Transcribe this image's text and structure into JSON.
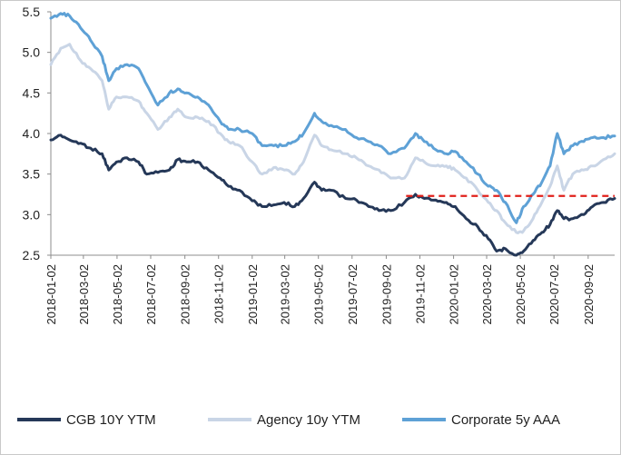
{
  "chart_data": {
    "type": "line",
    "title": "",
    "xlabel": "",
    "ylabel": "",
    "ylim": [
      2.5,
      5.5
    ],
    "yticks": [
      "2.5",
      "3.0",
      "3.5",
      "4.0",
      "4.5",
      "5.0",
      "5.5"
    ],
    "xlim": [
      "2018-01-02",
      "2020-10-20"
    ],
    "xticks": [
      "2018-01-02",
      "2018-03-02",
      "2018-05-02",
      "2018-07-02",
      "2018-09-02",
      "2018-11-02",
      "2019-01-02",
      "2019-03-02",
      "2019-05-02",
      "2019-07-02",
      "2019-09-02",
      "2019-11-02",
      "2020-01-02",
      "2020-03-02",
      "2020-05-02",
      "2020-07-02",
      "2020-09-02"
    ],
    "grid": false,
    "legend_position": "bottom",
    "reference_line": {
      "y": 3.23,
      "x_start": "2019-10-08",
      "x_end": "2020-10-20",
      "style": "dashed",
      "color": "#e0201b"
    },
    "series": [
      {
        "name": "CGB 10Y YTM",
        "color": "#253858",
        "points": [
          [
            "2018-01-02",
            3.92
          ],
          [
            "2018-01-20",
            3.98
          ],
          [
            "2018-02-05",
            3.92
          ],
          [
            "2018-02-25",
            3.88
          ],
          [
            "2018-03-15",
            3.82
          ],
          [
            "2018-04-05",
            3.75
          ],
          [
            "2018-04-17",
            3.55
          ],
          [
            "2018-05-01",
            3.65
          ],
          [
            "2018-05-20",
            3.7
          ],
          [
            "2018-06-10",
            3.65
          ],
          [
            "2018-06-25",
            3.5
          ],
          [
            "2018-07-15",
            3.52
          ],
          [
            "2018-08-05",
            3.55
          ],
          [
            "2018-08-20",
            3.68
          ],
          [
            "2018-09-05",
            3.65
          ],
          [
            "2018-09-25",
            3.65
          ],
          [
            "2018-10-15",
            3.55
          ],
          [
            "2018-11-05",
            3.45
          ],
          [
            "2018-11-20",
            3.35
          ],
          [
            "2018-12-10",
            3.3
          ],
          [
            "2019-01-02",
            3.17
          ],
          [
            "2019-01-20",
            3.1
          ],
          [
            "2019-02-10",
            3.12
          ],
          [
            "2019-03-01",
            3.15
          ],
          [
            "2019-03-20",
            3.1
          ],
          [
            "2019-04-05",
            3.2
          ],
          [
            "2019-04-25",
            3.4
          ],
          [
            "2019-05-08",
            3.3
          ],
          [
            "2019-05-25",
            3.3
          ],
          [
            "2019-06-20",
            3.2
          ],
          [
            "2019-07-10",
            3.18
          ],
          [
            "2019-08-01",
            3.1
          ],
          [
            "2019-08-20",
            3.05
          ],
          [
            "2019-09-10",
            3.05
          ],
          [
            "2019-10-05",
            3.15
          ],
          [
            "2019-10-25",
            3.25
          ],
          [
            "2019-11-10",
            3.2
          ],
          [
            "2019-12-01",
            3.18
          ],
          [
            "2019-12-20",
            3.15
          ],
          [
            "2020-01-05",
            3.1
          ],
          [
            "2020-01-25",
            2.95
          ],
          [
            "2020-02-15",
            2.85
          ],
          [
            "2020-03-05",
            2.7
          ],
          [
            "2020-03-20",
            2.55
          ],
          [
            "2020-04-05",
            2.58
          ],
          [
            "2020-04-25",
            2.5
          ],
          [
            "2020-05-08",
            2.55
          ],
          [
            "2020-05-25",
            2.68
          ],
          [
            "2020-06-10",
            2.78
          ],
          [
            "2020-06-25",
            2.88
          ],
          [
            "2020-07-08",
            3.05
          ],
          [
            "2020-07-20",
            2.95
          ],
          [
            "2020-08-05",
            2.95
          ],
          [
            "2020-08-25",
            3.0
          ],
          [
            "2020-09-10",
            3.1
          ],
          [
            "2020-09-30",
            3.15
          ],
          [
            "2020-10-20",
            3.2
          ]
        ]
      },
      {
        "name": "Agency 10y YTM",
        "color": "#c9d5e6",
        "points": [
          [
            "2018-01-02",
            4.85
          ],
          [
            "2018-01-20",
            5.05
          ],
          [
            "2018-02-05",
            5.1
          ],
          [
            "2018-02-25",
            4.9
          ],
          [
            "2018-03-15",
            4.8
          ],
          [
            "2018-04-05",
            4.65
          ],
          [
            "2018-04-17",
            4.3
          ],
          [
            "2018-05-01",
            4.45
          ],
          [
            "2018-05-20",
            4.45
          ],
          [
            "2018-06-10",
            4.4
          ],
          [
            "2018-06-25",
            4.25
          ],
          [
            "2018-07-15",
            4.05
          ],
          [
            "2018-08-05",
            4.2
          ],
          [
            "2018-08-20",
            4.3
          ],
          [
            "2018-09-05",
            4.2
          ],
          [
            "2018-09-25",
            4.2
          ],
          [
            "2018-10-15",
            4.15
          ],
          [
            "2018-11-05",
            4.0
          ],
          [
            "2018-11-20",
            3.9
          ],
          [
            "2018-12-10",
            3.85
          ],
          [
            "2019-01-02",
            3.65
          ],
          [
            "2019-01-20",
            3.5
          ],
          [
            "2019-02-10",
            3.58
          ],
          [
            "2019-03-01",
            3.55
          ],
          [
            "2019-03-20",
            3.5
          ],
          [
            "2019-04-05",
            3.65
          ],
          [
            "2019-04-25",
            3.98
          ],
          [
            "2019-05-08",
            3.85
          ],
          [
            "2019-05-25",
            3.8
          ],
          [
            "2019-06-20",
            3.75
          ],
          [
            "2019-07-10",
            3.7
          ],
          [
            "2019-08-01",
            3.6
          ],
          [
            "2019-08-20",
            3.55
          ],
          [
            "2019-09-10",
            3.45
          ],
          [
            "2019-10-05",
            3.45
          ],
          [
            "2019-10-25",
            3.7
          ],
          [
            "2019-11-10",
            3.65
          ],
          [
            "2019-12-01",
            3.6
          ],
          [
            "2019-12-20",
            3.6
          ],
          [
            "2020-01-05",
            3.55
          ],
          [
            "2020-01-25",
            3.45
          ],
          [
            "2020-02-15",
            3.3
          ],
          [
            "2020-03-05",
            3.15
          ],
          [
            "2020-03-20",
            3.05
          ],
          [
            "2020-04-05",
            2.9
          ],
          [
            "2020-04-25",
            2.78
          ],
          [
            "2020-05-08",
            2.8
          ],
          [
            "2020-05-25",
            2.95
          ],
          [
            "2020-06-10",
            3.15
          ],
          [
            "2020-06-25",
            3.35
          ],
          [
            "2020-07-08",
            3.6
          ],
          [
            "2020-07-20",
            3.3
          ],
          [
            "2020-08-05",
            3.5
          ],
          [
            "2020-08-25",
            3.55
          ],
          [
            "2020-09-10",
            3.6
          ],
          [
            "2020-09-30",
            3.68
          ],
          [
            "2020-10-20",
            3.75
          ]
        ]
      },
      {
        "name": "Corporate 5y AAA",
        "color": "#5ea1d6",
        "points": [
          [
            "2018-01-02",
            5.42
          ],
          [
            "2018-01-20",
            5.48
          ],
          [
            "2018-02-05",
            5.45
          ],
          [
            "2018-02-25",
            5.3
          ],
          [
            "2018-03-15",
            5.15
          ],
          [
            "2018-04-05",
            4.95
          ],
          [
            "2018-04-17",
            4.65
          ],
          [
            "2018-05-01",
            4.8
          ],
          [
            "2018-05-20",
            4.85
          ],
          [
            "2018-06-10",
            4.8
          ],
          [
            "2018-06-25",
            4.6
          ],
          [
            "2018-07-15",
            4.35
          ],
          [
            "2018-08-05",
            4.5
          ],
          [
            "2018-08-20",
            4.55
          ],
          [
            "2018-09-05",
            4.5
          ],
          [
            "2018-09-25",
            4.45
          ],
          [
            "2018-10-15",
            4.35
          ],
          [
            "2018-11-05",
            4.15
          ],
          [
            "2018-11-20",
            4.05
          ],
          [
            "2018-12-10",
            4.05
          ],
          [
            "2019-01-02",
            4.0
          ],
          [
            "2019-01-20",
            3.85
          ],
          [
            "2019-02-10",
            3.85
          ],
          [
            "2019-03-01",
            3.85
          ],
          [
            "2019-03-20",
            3.9
          ],
          [
            "2019-04-05",
            4.0
          ],
          [
            "2019-04-25",
            4.25
          ],
          [
            "2019-05-08",
            4.15
          ],
          [
            "2019-05-25",
            4.1
          ],
          [
            "2019-06-20",
            4.05
          ],
          [
            "2019-07-10",
            3.95
          ],
          [
            "2019-08-01",
            3.9
          ],
          [
            "2019-08-20",
            3.85
          ],
          [
            "2019-09-10",
            3.75
          ],
          [
            "2019-10-05",
            3.82
          ],
          [
            "2019-10-25",
            4.0
          ],
          [
            "2019-11-10",
            3.9
          ],
          [
            "2019-12-01",
            3.8
          ],
          [
            "2019-12-20",
            3.75
          ],
          [
            "2020-01-05",
            3.78
          ],
          [
            "2020-01-25",
            3.65
          ],
          [
            "2020-02-15",
            3.5
          ],
          [
            "2020-03-05",
            3.35
          ],
          [
            "2020-03-20",
            3.3
          ],
          [
            "2020-04-05",
            3.15
          ],
          [
            "2020-04-25",
            2.9
          ],
          [
            "2020-05-08",
            3.1
          ],
          [
            "2020-05-25",
            3.25
          ],
          [
            "2020-06-10",
            3.4
          ],
          [
            "2020-06-25",
            3.6
          ],
          [
            "2020-07-08",
            4.0
          ],
          [
            "2020-07-20",
            3.75
          ],
          [
            "2020-08-05",
            3.85
          ],
          [
            "2020-08-25",
            3.9
          ],
          [
            "2020-09-10",
            3.95
          ],
          [
            "2020-09-30",
            3.95
          ],
          [
            "2020-10-20",
            3.97
          ]
        ]
      }
    ]
  }
}
